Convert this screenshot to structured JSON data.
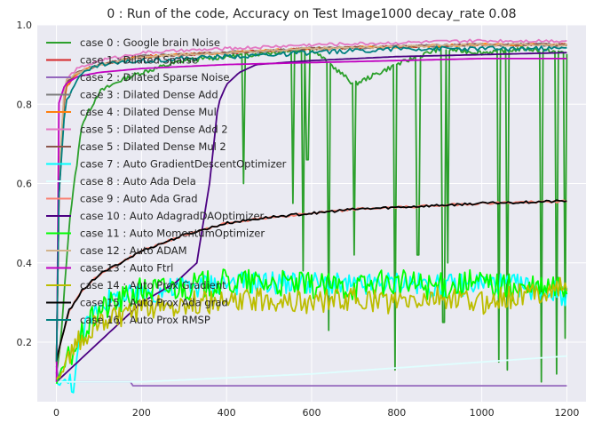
{
  "chart_data": {
    "type": "line",
    "title": "0 : Run of the code, Accuracy on Test Image1000 decay_rate 0.08",
    "xlabel": "",
    "ylabel": "",
    "xlim": [
      -45,
      1245
    ],
    "ylim": [
      0.05,
      1.0
    ],
    "x_ticks": [
      0,
      200,
      400,
      600,
      800,
      1000,
      1200
    ],
    "y_ticks": [
      0.2,
      0.4,
      0.6,
      0.8,
      1.0
    ],
    "x_tick_labels": [
      "0",
      "200",
      "400",
      "600",
      "800",
      "1000",
      "1200"
    ],
    "y_tick_labels": [
      "0.2",
      "0.4",
      "0.6",
      "0.8",
      "1.0"
    ],
    "grid": true,
    "background": "#eaeaf2",
    "legend_position": "top-left",
    "series": [
      {
        "name": "case 0 : Google brain Noise",
        "color": "#2ca02c",
        "x": [
          0,
          10,
          30,
          60,
          100,
          150,
          200,
          300,
          400,
          500,
          600,
          700,
          800,
          900,
          1000,
          1100,
          1200
        ],
        "y": [
          0.12,
          0.2,
          0.5,
          0.75,
          0.83,
          0.86,
          0.88,
          0.91,
          0.92,
          0.93,
          0.94,
          0.85,
          0.9,
          0.94,
          0.93,
          0.94,
          0.93
        ],
        "dips": [
          [
            440,
            0.6
          ],
          [
            555,
            0.55
          ],
          [
            580,
            0.38
          ],
          [
            590,
            0.66
          ],
          [
            640,
            0.23
          ],
          [
            700,
            0.42
          ],
          [
            795,
            0.13
          ],
          [
            850,
            0.42
          ],
          [
            910,
            0.25
          ],
          [
            920,
            0.4
          ],
          [
            1040,
            0.15
          ],
          [
            1060,
            0.13
          ],
          [
            1140,
            0.1
          ],
          [
            1175,
            0.12
          ],
          [
            1195,
            0.21
          ]
        ]
      },
      {
        "name": "case 1 : Dilated Sparse",
        "color": "#d62728",
        "x": [
          0,
          5,
          20,
          50,
          100,
          200,
          400,
          600,
          800,
          1000,
          1200
        ],
        "y": [
          0.15,
          0.55,
          0.84,
          0.88,
          0.9,
          0.92,
          0.93,
          0.94,
          0.945,
          0.95,
          0.95
        ]
      },
      {
        "name": "case 2 : Dilated Sparse Noise",
        "color": "#9467bd",
        "x": [
          0,
          5,
          10,
          175,
          180,
          1200
        ],
        "y": [
          0.14,
          0.1,
          0.1,
          0.1,
          0.09,
          0.09
        ]
      },
      {
        "name": "case 3 : Dilated Dense Add",
        "color": "#7f7f7f",
        "x": [
          0,
          5,
          20,
          50,
          100,
          200,
          400,
          600,
          800,
          1000,
          1200
        ],
        "y": [
          0.15,
          0.6,
          0.85,
          0.88,
          0.9,
          0.92,
          0.93,
          0.94,
          0.945,
          0.95,
          0.95
        ]
      },
      {
        "name": "case 4 : Dilated Dense Mul",
        "color": "#ff7f0e",
        "x": [
          0,
          5,
          20,
          50,
          100,
          200,
          400,
          600,
          800,
          1000,
          1200
        ],
        "y": [
          0.15,
          0.55,
          0.84,
          0.88,
          0.9,
          0.92,
          0.93,
          0.94,
          0.945,
          0.95,
          0.95
        ]
      },
      {
        "name": "case 5 : Dilated Dense Add 2",
        "color": "#e377c2",
        "x": [
          0,
          5,
          20,
          50,
          100,
          200,
          400,
          600,
          800,
          1000,
          1200
        ],
        "y": [
          0.15,
          0.6,
          0.86,
          0.89,
          0.91,
          0.93,
          0.94,
          0.95,
          0.955,
          0.96,
          0.96
        ]
      },
      {
        "name": "case 5 : Dilated Dense Mul 2",
        "color": "#8c564b",
        "x": [
          0,
          5,
          20,
          50,
          100,
          200,
          400,
          600,
          800,
          1000,
          1200
        ],
        "y": [
          0.15,
          0.55,
          0.85,
          0.88,
          0.9,
          0.92,
          0.93,
          0.94,
          0.945,
          0.95,
          0.95
        ]
      },
      {
        "name": "case 7 : Auto GradientDescentOptimizer",
        "color": "#00ffff",
        "x": [
          0,
          40,
          60,
          100,
          200,
          300,
          400,
          500,
          600,
          700,
          800,
          900,
          1000,
          1100,
          1200
        ],
        "y": [
          0.1,
          0.1,
          0.22,
          0.3,
          0.32,
          0.34,
          0.35,
          0.35,
          0.35,
          0.34,
          0.35,
          0.34,
          0.35,
          0.34,
          0.32
        ]
      },
      {
        "name": "case 8 : Auto Ada Dela",
        "color": "#e0ffff",
        "x": [
          0,
          200,
          400,
          600,
          800,
          1000,
          1200
        ],
        "y": [
          0.1,
          0.1,
          0.11,
          0.12,
          0.135,
          0.15,
          0.165
        ]
      },
      {
        "name": "case 9 : Auto Ada Grad",
        "color": "#fa8072",
        "x": [
          0,
          10,
          30,
          60,
          100,
          200,
          300,
          400,
          500,
          600,
          700,
          800,
          900,
          1000,
          1100,
          1200
        ],
        "y": [
          0.15,
          0.2,
          0.28,
          0.33,
          0.37,
          0.43,
          0.47,
          0.5,
          0.515,
          0.525,
          0.535,
          0.54,
          0.545,
          0.55,
          0.553,
          0.555
        ]
      },
      {
        "name": "case 10 : Auto AdagradDAOptimizer",
        "color": "#4b0082",
        "x": [
          0,
          50,
          100,
          150,
          200,
          280,
          330,
          360,
          380,
          400,
          430,
          470,
          600,
          800,
          1000,
          1200
        ],
        "y": [
          0.1,
          0.15,
          0.2,
          0.25,
          0.3,
          0.35,
          0.4,
          0.6,
          0.8,
          0.85,
          0.88,
          0.9,
          0.91,
          0.92,
          0.925,
          0.93
        ]
      },
      {
        "name": "case 11 : Auto MomentumOptimizer",
        "color": "#00ff00",
        "x": [
          0,
          50,
          100,
          200,
          300,
          400,
          500,
          600,
          700,
          800,
          900,
          1000,
          1100,
          1200
        ],
        "y": [
          0.1,
          0.2,
          0.28,
          0.33,
          0.34,
          0.35,
          0.35,
          0.34,
          0.34,
          0.35,
          0.34,
          0.35,
          0.33,
          0.34
        ]
      },
      {
        "name": "case 12 : Auto ADAM",
        "color": "#d2b48c",
        "x": [
          0,
          5,
          20,
          50,
          100,
          200,
          400,
          600,
          800,
          1000,
          1200
        ],
        "y": [
          0.15,
          0.6,
          0.86,
          0.88,
          0.9,
          0.92,
          0.93,
          0.94,
          0.945,
          0.95,
          0.95
        ]
      },
      {
        "name": "case 13 : Auto Ftrl",
        "color": "#c000c0",
        "x": [
          0,
          5,
          20,
          50,
          100,
          200,
          400,
          600,
          800,
          1000,
          1200
        ],
        "y": [
          0.1,
          0.8,
          0.85,
          0.87,
          0.88,
          0.89,
          0.9,
          0.905,
          0.91,
          0.915,
          0.915
        ]
      },
      {
        "name": "case 14 : Auto Prox Gradient",
        "color": "#bcbd00",
        "x": [
          0,
          50,
          100,
          200,
          300,
          400,
          500,
          600,
          700,
          800,
          900,
          1000,
          1100,
          1200
        ],
        "y": [
          0.1,
          0.2,
          0.25,
          0.28,
          0.3,
          0.3,
          0.31,
          0.3,
          0.31,
          0.3,
          0.31,
          0.3,
          0.32,
          0.34
        ]
      },
      {
        "name": "case 15 : Auto Prox Ada grad",
        "color": "#000000",
        "x": [
          0,
          10,
          30,
          60,
          100,
          200,
          300,
          400,
          500,
          600,
          700,
          800,
          900,
          1000,
          1100,
          1200
        ],
        "y": [
          0.15,
          0.2,
          0.28,
          0.33,
          0.37,
          0.43,
          0.47,
          0.5,
          0.515,
          0.525,
          0.535,
          0.54,
          0.545,
          0.55,
          0.553,
          0.556
        ]
      },
      {
        "name": "case 16 : Auto Prox RMSP",
        "color": "#008080",
        "x": [
          0,
          5,
          20,
          50,
          100,
          200,
          400,
          600,
          800,
          1000,
          1200
        ],
        "y": [
          0.15,
          0.55,
          0.8,
          0.87,
          0.9,
          0.91,
          0.92,
          0.93,
          0.94,
          0.94,
          0.94
        ]
      }
    ]
  }
}
